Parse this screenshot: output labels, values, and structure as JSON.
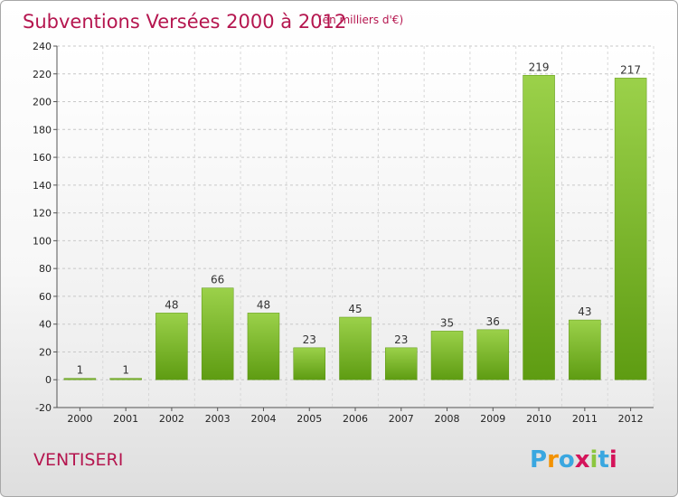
{
  "title": "Subventions Versées 2000 à 2012",
  "unit_note": "(en milliers d'€)",
  "location": "VENTISERI",
  "logo": {
    "letters": [
      "P",
      "r",
      "o",
      "x",
      "i",
      "t",
      "i"
    ],
    "colors": [
      "#3aa7e0",
      "#f39200",
      "#3aa7e0",
      "#d4145a",
      "#8cc63f",
      "#3aa7e0",
      "#d4145a"
    ]
  },
  "colors": {
    "bar_top": "#9bd14a",
    "bar_bottom": "#5e9c12",
    "accent": "#b5164f"
  },
  "chart_data": {
    "type": "bar",
    "categories": [
      "2000",
      "2001",
      "2002",
      "2003",
      "2004",
      "2005",
      "2006",
      "2007",
      "2008",
      "2009",
      "2010",
      "2011",
      "2012"
    ],
    "values": [
      1,
      1,
      48,
      66,
      48,
      23,
      45,
      23,
      35,
      36,
      219,
      43,
      217
    ],
    "value_labels": [
      "1",
      "1",
      "48",
      "66",
      "48",
      "23",
      "45",
      "23",
      "35",
      "36",
      "219",
      "43",
      "217"
    ],
    "ylim": [
      -20,
      240
    ],
    "yticks": [
      -20,
      0,
      20,
      40,
      60,
      80,
      100,
      120,
      140,
      160,
      180,
      200,
      220,
      240
    ],
    "ytick_labels": [
      "-20",
      "0",
      "20",
      "40",
      "60",
      "80",
      "100",
      "120",
      "140",
      "160",
      "180",
      "200",
      "220",
      "240"
    ],
    "grid": true,
    "xlabel": "",
    "ylabel": ""
  }
}
